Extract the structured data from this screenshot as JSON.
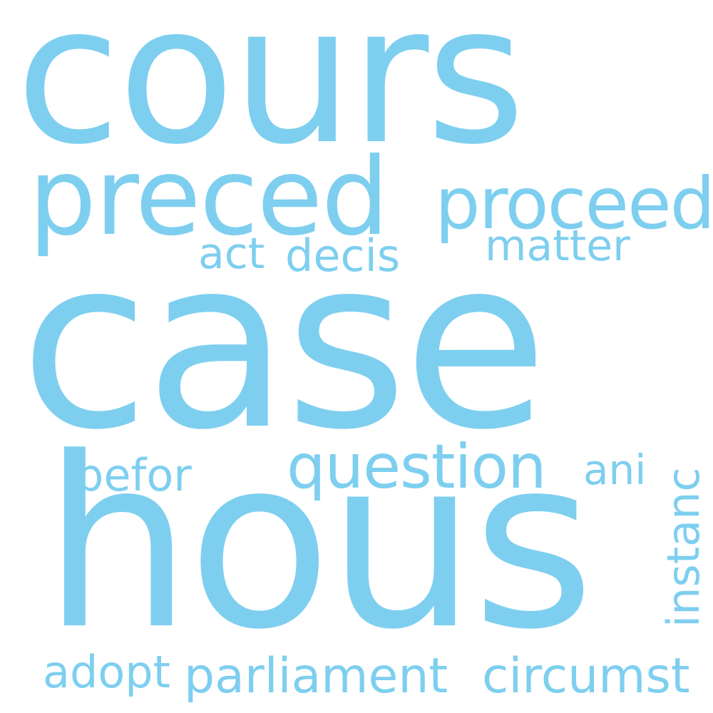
{
  "wordcloud": {
    "color": "#7ecfef",
    "background": "#ffffff",
    "words": {
      "cours": "cours",
      "preced": "preced",
      "proceed": "proceed",
      "act": "act",
      "decis": "decis",
      "matter": "matter",
      "case": "case",
      "question": "question",
      "ani": "ani",
      "befor": "befor",
      "instanc": "instanc",
      "hous": "hous",
      "adopt": "adopt",
      "parliament": "parliament",
      "circumst": "circumst"
    }
  }
}
